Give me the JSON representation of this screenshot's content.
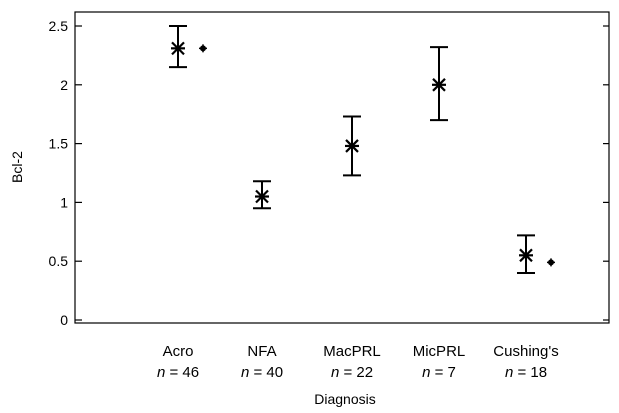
{
  "chart_data": {
    "type": "scatter",
    "title": "",
    "xlabel": "Diagnosis",
    "ylabel": "Bcl-2",
    "ylim": [
      0,
      2.55
    ],
    "yticks": [
      0,
      0.5,
      1,
      1.5,
      2,
      2.5
    ],
    "ytick_labels": [
      "0",
      "0.5",
      "1",
      "1.5",
      "2",
      "2.5"
    ],
    "grid": false,
    "categories": [
      {
        "label": "Acro",
        "n_prefix": "n",
        "n_text": " = 46"
      },
      {
        "label": "NFA",
        "n_prefix": "n",
        "n_text": " = 40"
      },
      {
        "label": "MacPRL",
        "n_prefix": "n",
        "n_text": " = 22"
      },
      {
        "label": "MicPRL",
        "n_prefix": "n",
        "n_text": " = 7"
      },
      {
        "label": "Cushing's",
        "n_prefix": "n",
        "n_text": " = 18"
      }
    ],
    "series": [
      {
        "marker": "asterisk-with-error-bars",
        "points": [
          {
            "category": "Acro",
            "y": 2.31,
            "y_low": 2.15,
            "y_high": 2.5
          },
          {
            "category": "NFA",
            "y": 1.05,
            "y_low": 0.95,
            "y_high": 1.18
          },
          {
            "category": "MacPRL",
            "y": 1.48,
            "y_low": 1.23,
            "y_high": 1.73
          },
          {
            "category": "MicPRL",
            "y": 2.0,
            "y_low": 1.7,
            "y_high": 2.32
          },
          {
            "category": "Cushing's",
            "y": 0.55,
            "y_low": 0.4,
            "y_high": 0.72
          }
        ]
      },
      {
        "marker": "dot",
        "points": [
          {
            "category": "Acro",
            "y": 2.31
          },
          {
            "category": "Cushing's",
            "y": 0.49
          }
        ]
      }
    ]
  }
}
